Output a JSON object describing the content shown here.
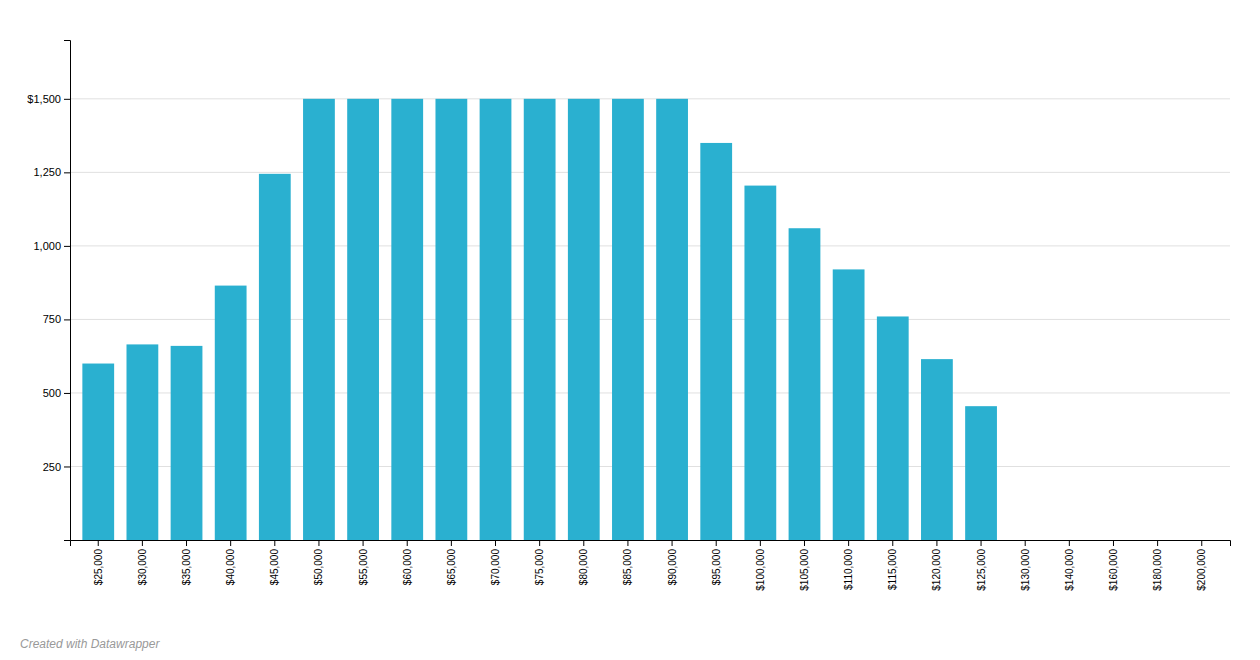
{
  "chart_data": {
    "type": "bar",
    "categories": [
      "$25,000",
      "$30,000",
      "$35,000",
      "$40,000",
      "$45,000",
      "$50,000",
      "$55,000",
      "$60,000",
      "$65,000",
      "$70,000",
      "$75,000",
      "$80,000",
      "$85,000",
      "$90,000",
      "$95,000",
      "$100,000",
      "$105,000",
      "$110,000",
      "$115,000",
      "$120,000",
      "$125,000",
      "$130,000",
      "$140,000",
      "$160,000",
      "$180,000",
      "$200,000"
    ],
    "values": [
      600,
      665,
      660,
      865,
      1245,
      1500,
      1500,
      1500,
      1500,
      1500,
      1500,
      1500,
      1500,
      1500,
      1350,
      1205,
      1060,
      920,
      760,
      615,
      455,
      0,
      0,
      0,
      0,
      0
    ],
    "color": "#2ab0d0",
    "ylim": [
      0,
      1700
    ],
    "yticks": [
      {
        "value": 1500,
        "label": "$1,500"
      },
      {
        "value": 1250,
        "label": "1,250"
      },
      {
        "value": 1000,
        "label": "1,000"
      },
      750,
      500,
      250
    ],
    "grid": true,
    "annotations": [
      "Created with Datawrapper"
    ]
  }
}
